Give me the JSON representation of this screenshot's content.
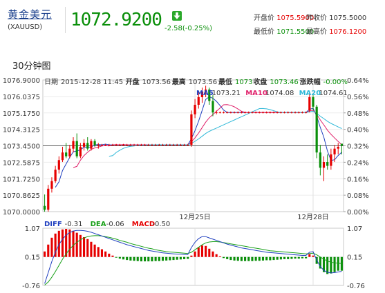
{
  "header": {
    "name": "黄金美元",
    "code": "(XAUUSD)",
    "price": "1072.9200",
    "change": "-2.58(-0.25%)",
    "colors": {
      "down": "#0a8f0a",
      "up": "#e60000",
      "link": "#1a3f8c"
    },
    "stats": {
      "open": {
        "label": "开盘价",
        "value": "1075.5900"
      },
      "prev_close": {
        "label": "昨收价",
        "value": "1075.5000"
      },
      "low": {
        "label": "最低价",
        "value": "1071.5500"
      },
      "high": {
        "label": "最高价",
        "value": "1076.1200"
      }
    }
  },
  "section_title": "30分钟图",
  "chart_data": [
    {
      "type": "candlestick",
      "info": {
        "date_label": "日期",
        "date": "2015-12-28 11:45",
        "open_label": "开盘",
        "open": "1073.56",
        "high_label": "最高",
        "high": "1073.56",
        "low_label": "最低",
        "low": "1073",
        "close_label": "收盘",
        "close": "1073.46",
        "chg_label": "涨跌幅",
        "chg": "-0.00%"
      },
      "ma_legend": [
        {
          "name": "MA5",
          "value": "1073.21",
          "color": "#1f3fbf"
        },
        {
          "name": "MA10",
          "value": "1074.08",
          "color": "#e0206a"
        },
        {
          "name": "MA20",
          "value": "1074.61",
          "color": "#2eb8d8"
        }
      ],
      "y_ticks": [
        "1076.9000",
        "1076.0375",
        "1075.1750",
        "1074.3125",
        "1073.4500",
        "1072.5875",
        "1071.7250",
        "1070.8625",
        "1070.0000"
      ],
      "ylim": [
        1070.0,
        1076.9
      ],
      "right_ticks": [
        "0.64%",
        "0.56%",
        "0.48%",
        "0.40%",
        "0.32%",
        "0.24%",
        "0.16%",
        "0.08%",
        "0.00%"
      ],
      "x_labels": [
        {
          "label": "12月25日",
          "index": 42
        },
        {
          "label": "12月28日",
          "index": 75
        }
      ],
      "ref_level": 1073.45,
      "candles": [
        {
          "o": 1070.3,
          "h": 1070.9,
          "l": 1070.0,
          "c": 1070.1
        },
        {
          "o": 1070.1,
          "h": 1071.4,
          "l": 1070.0,
          "c": 1071.2
        },
        {
          "o": 1071.2,
          "h": 1071.8,
          "l": 1071.0,
          "c": 1071.6
        },
        {
          "o": 1071.6,
          "h": 1072.4,
          "l": 1071.5,
          "c": 1072.2
        },
        {
          "o": 1072.2,
          "h": 1072.9,
          "l": 1072.0,
          "c": 1072.7
        },
        {
          "o": 1072.7,
          "h": 1073.4,
          "l": 1072.6,
          "c": 1073.1
        },
        {
          "o": 1073.1,
          "h": 1073.6,
          "l": 1072.8,
          "c": 1072.9
        },
        {
          "o": 1072.9,
          "h": 1073.5,
          "l": 1072.8,
          "c": 1073.3
        },
        {
          "o": 1073.3,
          "h": 1073.9,
          "l": 1073.1,
          "c": 1073.7
        },
        {
          "o": 1073.7,
          "h": 1074.1,
          "l": 1072.8,
          "c": 1072.9
        },
        {
          "o": 1072.9,
          "h": 1073.6,
          "l": 1072.8,
          "c": 1073.4
        },
        {
          "o": 1073.4,
          "h": 1073.8,
          "l": 1073.2,
          "c": 1073.6
        },
        {
          "o": 1073.6,
          "h": 1073.9,
          "l": 1073.2,
          "c": 1073.3
        },
        {
          "o": 1073.3,
          "h": 1073.8,
          "l": 1073.2,
          "c": 1073.7
        },
        {
          "o": 1073.7,
          "h": 1073.8,
          "l": 1073.4,
          "c": 1073.5
        },
        {
          "o": 1073.5,
          "h": 1073.6,
          "l": 1073.3,
          "c": 1073.5
        },
        {
          "o": 1073.5,
          "h": 1073.55,
          "l": 1073.45,
          "c": 1073.5
        },
        {
          "o": 1073.5,
          "h": 1073.55,
          "l": 1073.45,
          "c": 1073.5
        },
        {
          "o": 1073.5,
          "h": 1073.55,
          "l": 1073.45,
          "c": 1073.5
        },
        {
          "o": 1073.5,
          "h": 1073.55,
          "l": 1073.45,
          "c": 1073.5
        },
        {
          "o": 1073.5,
          "h": 1073.55,
          "l": 1073.45,
          "c": 1073.5
        },
        {
          "o": 1073.5,
          "h": 1073.55,
          "l": 1073.45,
          "c": 1073.5
        },
        {
          "o": 1073.5,
          "h": 1073.55,
          "l": 1073.45,
          "c": 1073.5
        },
        {
          "o": 1073.5,
          "h": 1073.55,
          "l": 1073.45,
          "c": 1073.5
        },
        {
          "o": 1073.5,
          "h": 1073.55,
          "l": 1073.45,
          "c": 1073.5
        },
        {
          "o": 1073.5,
          "h": 1073.55,
          "l": 1073.45,
          "c": 1073.5
        },
        {
          "o": 1073.5,
          "h": 1073.55,
          "l": 1073.45,
          "c": 1073.5
        },
        {
          "o": 1073.5,
          "h": 1073.55,
          "l": 1073.45,
          "c": 1073.5
        },
        {
          "o": 1073.5,
          "h": 1073.55,
          "l": 1073.45,
          "c": 1073.5
        },
        {
          "o": 1073.5,
          "h": 1073.55,
          "l": 1073.45,
          "c": 1073.5
        },
        {
          "o": 1073.5,
          "h": 1073.55,
          "l": 1073.45,
          "c": 1073.5
        },
        {
          "o": 1073.5,
          "h": 1073.55,
          "l": 1073.45,
          "c": 1073.5
        },
        {
          "o": 1073.5,
          "h": 1073.55,
          "l": 1073.45,
          "c": 1073.5
        },
        {
          "o": 1073.5,
          "h": 1073.55,
          "l": 1073.45,
          "c": 1073.5
        },
        {
          "o": 1073.5,
          "h": 1073.55,
          "l": 1073.45,
          "c": 1073.5
        },
        {
          "o": 1073.5,
          "h": 1073.55,
          "l": 1073.45,
          "c": 1073.5
        },
        {
          "o": 1073.5,
          "h": 1073.55,
          "l": 1073.45,
          "c": 1073.5
        },
        {
          "o": 1073.5,
          "h": 1073.55,
          "l": 1073.45,
          "c": 1073.5
        },
        {
          "o": 1073.5,
          "h": 1073.55,
          "l": 1073.45,
          "c": 1073.5
        },
        {
          "o": 1073.5,
          "h": 1073.55,
          "l": 1073.45,
          "c": 1073.5
        },
        {
          "o": 1073.5,
          "h": 1073.55,
          "l": 1073.45,
          "c": 1073.5
        },
        {
          "o": 1073.5,
          "h": 1075.3,
          "l": 1073.4,
          "c": 1075.1
        },
        {
          "o": 1075.1,
          "h": 1075.9,
          "l": 1074.9,
          "c": 1075.6
        },
        {
          "o": 1075.6,
          "h": 1076.3,
          "l": 1075.4,
          "c": 1076.0
        },
        {
          "o": 1076.0,
          "h": 1076.5,
          "l": 1075.7,
          "c": 1076.3
        },
        {
          "o": 1076.3,
          "h": 1076.6,
          "l": 1076.0,
          "c": 1076.4
        },
        {
          "o": 1076.4,
          "h": 1076.5,
          "l": 1075.6,
          "c": 1075.8
        },
        {
          "o": 1075.8,
          "h": 1076.1,
          "l": 1075.0,
          "c": 1075.2
        },
        {
          "o": 1075.2,
          "h": 1075.3,
          "l": 1075.1,
          "c": 1075.2
        },
        {
          "o": 1075.2,
          "h": 1075.25,
          "l": 1075.15,
          "c": 1075.2
        },
        {
          "o": 1075.2,
          "h": 1075.25,
          "l": 1075.15,
          "c": 1075.2
        },
        {
          "o": 1075.2,
          "h": 1075.25,
          "l": 1075.15,
          "c": 1075.2
        },
        {
          "o": 1075.2,
          "h": 1075.25,
          "l": 1075.15,
          "c": 1075.2
        },
        {
          "o": 1075.2,
          "h": 1075.25,
          "l": 1075.15,
          "c": 1075.2
        },
        {
          "o": 1075.2,
          "h": 1075.25,
          "l": 1075.15,
          "c": 1075.2
        },
        {
          "o": 1075.2,
          "h": 1075.25,
          "l": 1075.15,
          "c": 1075.2
        },
        {
          "o": 1075.2,
          "h": 1075.25,
          "l": 1075.15,
          "c": 1075.2
        },
        {
          "o": 1075.2,
          "h": 1075.25,
          "l": 1075.15,
          "c": 1075.2
        },
        {
          "o": 1075.2,
          "h": 1075.25,
          "l": 1075.15,
          "c": 1075.2
        },
        {
          "o": 1075.2,
          "h": 1075.25,
          "l": 1075.15,
          "c": 1075.2
        },
        {
          "o": 1075.2,
          "h": 1075.25,
          "l": 1075.15,
          "c": 1075.2
        },
        {
          "o": 1075.2,
          "h": 1075.25,
          "l": 1075.15,
          "c": 1075.2
        },
        {
          "o": 1075.2,
          "h": 1075.25,
          "l": 1075.15,
          "c": 1075.2
        },
        {
          "o": 1075.2,
          "h": 1075.25,
          "l": 1075.15,
          "c": 1075.2
        },
        {
          "o": 1075.2,
          "h": 1075.25,
          "l": 1075.15,
          "c": 1075.2
        },
        {
          "o": 1075.2,
          "h": 1075.25,
          "l": 1075.15,
          "c": 1075.2
        },
        {
          "o": 1075.2,
          "h": 1075.25,
          "l": 1075.15,
          "c": 1075.2
        },
        {
          "o": 1075.2,
          "h": 1075.25,
          "l": 1075.15,
          "c": 1075.2
        },
        {
          "o": 1075.2,
          "h": 1075.25,
          "l": 1075.15,
          "c": 1075.2
        },
        {
          "o": 1075.2,
          "h": 1075.25,
          "l": 1075.15,
          "c": 1075.2
        },
        {
          "o": 1075.2,
          "h": 1075.25,
          "l": 1075.15,
          "c": 1075.2
        },
        {
          "o": 1075.2,
          "h": 1075.25,
          "l": 1075.15,
          "c": 1075.2
        },
        {
          "o": 1075.2,
          "h": 1075.25,
          "l": 1075.15,
          "c": 1075.2
        },
        {
          "o": 1075.2,
          "h": 1075.25,
          "l": 1075.15,
          "c": 1075.2
        },
        {
          "o": 1075.3,
          "h": 1076.2,
          "l": 1075.2,
          "c": 1076.0
        },
        {
          "o": 1076.0,
          "h": 1076.1,
          "l": 1075.3,
          "c": 1075.5
        },
        {
          "o": 1075.5,
          "h": 1075.6,
          "l": 1072.8,
          "c": 1073.1
        },
        {
          "o": 1073.1,
          "h": 1073.5,
          "l": 1071.9,
          "c": 1072.3
        },
        {
          "o": 1072.3,
          "h": 1072.9,
          "l": 1071.6,
          "c": 1072.6
        },
        {
          "o": 1072.6,
          "h": 1073.0,
          "l": 1072.2,
          "c": 1072.4
        },
        {
          "o": 1072.4,
          "h": 1073.3,
          "l": 1072.2,
          "c": 1073.0
        },
        {
          "o": 1073.0,
          "h": 1073.5,
          "l": 1072.6,
          "c": 1073.3
        },
        {
          "o": 1073.3,
          "h": 1073.6,
          "l": 1073.0,
          "c": 1073.4
        },
        {
          "o": 1073.56,
          "h": 1073.56,
          "l": 1073.0,
          "c": 1073.46
        }
      ]
    },
    {
      "type": "bar",
      "title": "MACD",
      "legend": [
        {
          "name": "DIFF",
          "value": "-0.31",
          "color": "#1f3fbf"
        },
        {
          "name": "DEA",
          "value": "-0.06",
          "color": "#18a018"
        },
        {
          "name": "MACD",
          "value": "-0.50",
          "color": "#e60000"
        }
      ],
      "y_ticks": [
        "1.07",
        "0.15",
        "-0.76"
      ],
      "ylim": [
        -0.76,
        1.07
      ],
      "histogram": [
        0.2,
        0.45,
        0.7,
        0.85,
        0.95,
        1.0,
        1.02,
        1.0,
        0.95,
        0.88,
        0.8,
        0.72,
        0.65,
        0.55,
        0.45,
        0.36,
        0.28,
        0.2,
        0.12,
        0.05,
        -0.02,
        -0.06,
        -0.09,
        -0.11,
        -0.13,
        -0.14,
        -0.15,
        -0.16,
        -0.16,
        -0.16,
        -0.16,
        -0.15,
        -0.15,
        -0.14,
        -0.13,
        -0.12,
        -0.11,
        -0.1,
        -0.09,
        -0.08,
        -0.07,
        0.05,
        0.2,
        0.35,
        0.42,
        0.4,
        0.3,
        0.2,
        0.1,
        0.02,
        -0.04,
        -0.08,
        -0.11,
        -0.13,
        -0.14,
        -0.15,
        -0.15,
        -0.15,
        -0.15,
        -0.14,
        -0.14,
        -0.13,
        -0.12,
        -0.12,
        -0.11,
        -0.1,
        -0.09,
        -0.08,
        -0.08,
        -0.07,
        -0.06,
        -0.06,
        -0.05,
        -0.05,
        0.1,
        0.05,
        -0.25,
        -0.42,
        -0.55,
        -0.62,
        -0.6,
        -0.55,
        -0.5,
        -0.5
      ],
      "diff": [
        -0.7,
        -0.35,
        0.0,
        0.3,
        0.55,
        0.72,
        0.85,
        0.93,
        0.98,
        1.0,
        1.0,
        0.99,
        0.97,
        0.94,
        0.9,
        0.86,
        0.82,
        0.78,
        0.74,
        0.7,
        0.66,
        0.62,
        0.58,
        0.54,
        0.51,
        0.48,
        0.45,
        0.42,
        0.39,
        0.36,
        0.34,
        0.32,
        0.3,
        0.28,
        0.27,
        0.26,
        0.25,
        0.24,
        0.24,
        0.23,
        0.23,
        0.45,
        0.62,
        0.74,
        0.8,
        0.8,
        0.76,
        0.72,
        0.68,
        0.64,
        0.6,
        0.56,
        0.53,
        0.5,
        0.47,
        0.44,
        0.42,
        0.4,
        0.38,
        0.36,
        0.34,
        0.32,
        0.3,
        0.29,
        0.28,
        0.27,
        0.26,
        0.25,
        0.24,
        0.23,
        0.22,
        0.21,
        0.2,
        0.2,
        0.3,
        0.32,
        0.05,
        -0.15,
        -0.28,
        -0.34,
        -0.36,
        -0.35,
        -0.33,
        -0.31
      ],
      "dea": [
        -0.75,
        -0.65,
        -0.5,
        -0.32,
        -0.12,
        0.08,
        0.25,
        0.4,
        0.52,
        0.62,
        0.7,
        0.76,
        0.8,
        0.82,
        0.83,
        0.83,
        0.82,
        0.8,
        0.78,
        0.75,
        0.72,
        0.68,
        0.65,
        0.62,
        0.58,
        0.55,
        0.52,
        0.49,
        0.46,
        0.43,
        0.41,
        0.38,
        0.36,
        0.34,
        0.32,
        0.31,
        0.3,
        0.29,
        0.28,
        0.27,
        0.26,
        0.3,
        0.38,
        0.46,
        0.54,
        0.6,
        0.63,
        0.64,
        0.64,
        0.63,
        0.61,
        0.59,
        0.57,
        0.55,
        0.53,
        0.51,
        0.49,
        0.47,
        0.45,
        0.43,
        0.41,
        0.39,
        0.37,
        0.35,
        0.34,
        0.33,
        0.32,
        0.31,
        0.3,
        0.29,
        0.28,
        0.27,
        0.26,
        0.25,
        0.26,
        0.27,
        0.22,
        0.15,
        0.08,
        0.02,
        -0.02,
        -0.04,
        -0.05,
        -0.06
      ]
    }
  ]
}
